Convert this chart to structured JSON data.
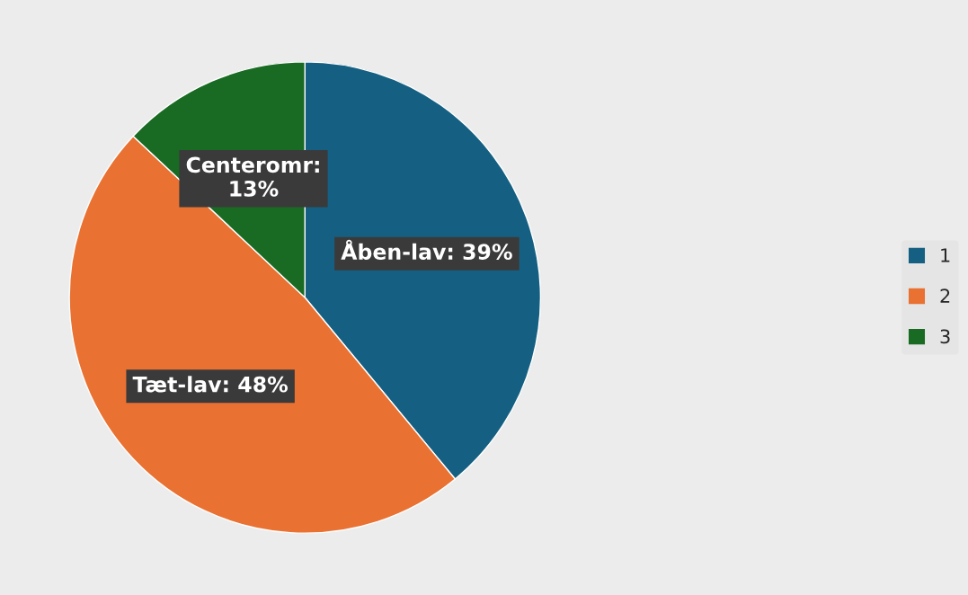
{
  "chart_data": {
    "type": "pie",
    "categories": [
      "1",
      "2",
      "3"
    ],
    "values": [
      39,
      48,
      13
    ],
    "colors": [
      "#156082",
      "#e97132",
      "#196b24"
    ],
    "value_labels": [
      "Åben-lav: 39%",
      "Tæt-lav: 48%",
      "Centeromr:\n13%"
    ],
    "legend": "right"
  }
}
